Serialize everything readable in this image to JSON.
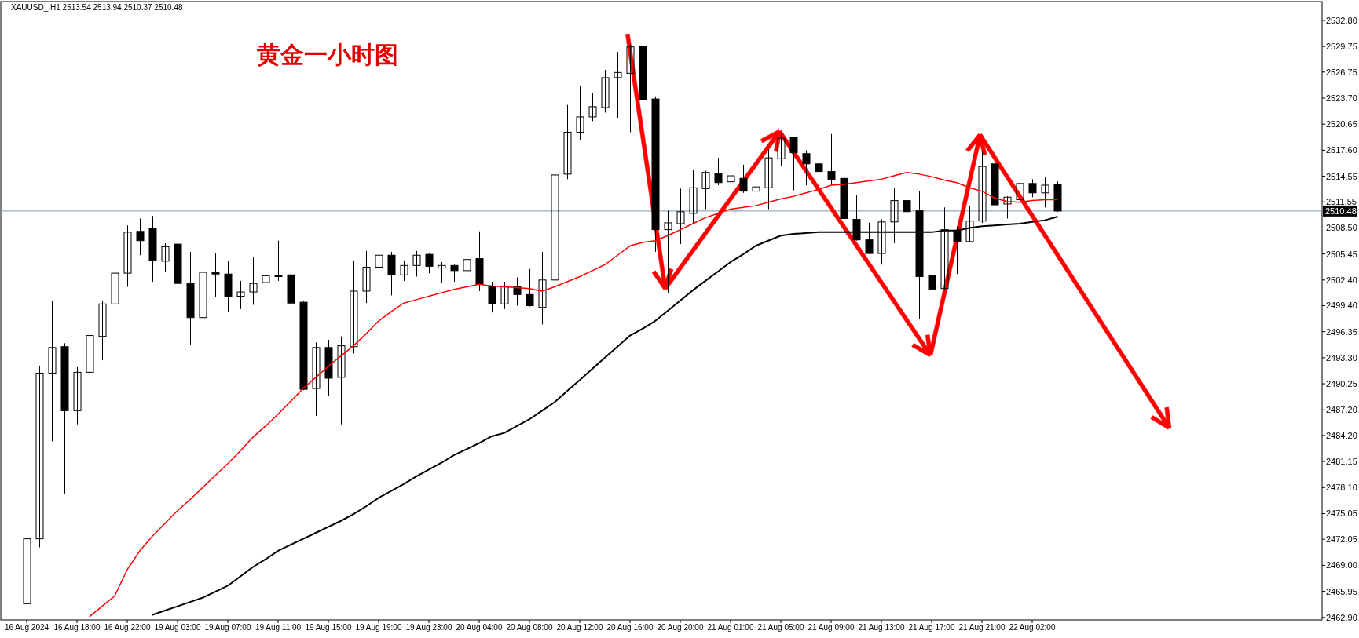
{
  "chart_data": {
    "type": "candlestick",
    "title": "黄金一小时图",
    "subtitle": "XAUUSD_,H1 2513.54 2513.94 2510.37 2510.48",
    "categories": [
      "16 Aug 2024",
      null,
      null,
      null,
      "16 Aug 18:00",
      null,
      null,
      null,
      "16 Aug 22:00",
      null,
      null,
      null,
      "19 Aug 03:00",
      null,
      null,
      null,
      "19 Aug 07:00",
      null,
      null,
      null,
      "19 Aug 11:00",
      null,
      null,
      null,
      "19 Aug 15:00",
      null,
      null,
      null,
      "19 Aug 19:00",
      null,
      null,
      null,
      "19 Aug 23:00",
      null,
      null,
      null,
      "20 Aug 04:00",
      null,
      null,
      null,
      "20 Aug 08:00",
      null,
      null,
      null,
      "20 Aug 12:00",
      null,
      null,
      null,
      "20 Aug 16:00",
      null,
      null,
      null,
      "20 Aug 20:00",
      null,
      null,
      null,
      "21 Aug 01:00",
      null,
      null,
      null,
      "21 Aug 05:00",
      null,
      null,
      null,
      "21 Aug 09:00",
      null,
      null,
      null,
      "21 Aug 13:00",
      null,
      null,
      null,
      "21 Aug 17:00",
      null,
      null,
      null,
      "21 Aug 21:00",
      null,
      null,
      null,
      "22 Aug 02:00",
      null,
      null
    ],
    "ohlc": [
      [
        2464.5,
        2472.2,
        2464.4,
        2472.1
      ],
      [
        2472.1,
        2492.3,
        2471.1,
        2491.5
      ],
      [
        2491.5,
        2500.0,
        2483.5,
        2494.5
      ],
      [
        2494.6,
        2495.0,
        2477.4,
        2487.1
      ],
      [
        2487.1,
        2492.2,
        2485.5,
        2491.6
      ],
      [
        2491.6,
        2497.7,
        2491.5,
        2495.9
      ],
      [
        2495.8,
        2500.0,
        2493.0,
        2499.6
      ],
      [
        2499.6,
        2504.7,
        2498.3,
        2503.2
      ],
      [
        2503.2,
        2508.8,
        2501.6,
        2508.0
      ],
      [
        2508.1,
        2509.6,
        2505.3,
        2507.0
      ],
      [
        2508.4,
        2509.9,
        2502.2,
        2504.7
      ],
      [
        2504.6,
        2506.7,
        2503.3,
        2506.3
      ],
      [
        2506.6,
        2506.7,
        2500.1,
        2502.0
      ],
      [
        2502.0,
        2505.7,
        2494.8,
        2498.0
      ],
      [
        2498.0,
        2503.8,
        2496.1,
        2503.3
      ],
      [
        2503.3,
        2505.5,
        2500.4,
        2503.1
      ],
      [
        2503.1,
        2504.6,
        2498.7,
        2500.5
      ],
      [
        2500.5,
        2502.3,
        2499.0,
        2501.0
      ],
      [
        2501.0,
        2505.1,
        2499.5,
        2502.0
      ],
      [
        2502.1,
        2504.7,
        2499.6,
        2502.9
      ],
      [
        2502.9,
        2507.0,
        2502.3,
        2502.8
      ],
      [
        2503.0,
        2503.8,
        2499.6,
        2499.7
      ],
      [
        2499.8,
        2500.0,
        2489.5,
        2489.6
      ],
      [
        2489.7,
        2495.1,
        2486.5,
        2494.5
      ],
      [
        2494.5,
        2495.4,
        2488.8,
        2490.9
      ],
      [
        2491.0,
        2495.8,
        2485.5,
        2494.7
      ],
      [
        2494.6,
        2504.7,
        2493.8,
        2501.1
      ],
      [
        2501.1,
        2505.8,
        2499.7,
        2503.9
      ],
      [
        2503.9,
        2507.2,
        2501.9,
        2505.3
      ],
      [
        2505.3,
        2505.7,
        2500.6,
        2503.0
      ],
      [
        2503.0,
        2504.7,
        2502.3,
        2504.1
      ],
      [
        2504.1,
        2505.8,
        2502.8,
        2505.3
      ],
      [
        2505.4,
        2505.5,
        2503.2,
        2504.0
      ],
      [
        2503.8,
        2504.5,
        2502.0,
        2504.1
      ],
      [
        2504.1,
        2504.2,
        2502.2,
        2503.5
      ],
      [
        2503.5,
        2506.7,
        2503.2,
        2504.8
      ],
      [
        2504.9,
        2508.1,
        2501.1,
        2501.9
      ],
      [
        2501.6,
        2502.2,
        2498.6,
        2499.6
      ],
      [
        2499.6,
        2502.2,
        2499.0,
        2501.6
      ],
      [
        2501.6,
        2502.7,
        2499.4,
        2500.7
      ],
      [
        2500.7,
        2503.7,
        2499.3,
        2499.4
      ],
      [
        2499.2,
        2505.7,
        2497.2,
        2502.4
      ],
      [
        2502.4,
        2514.9,
        2501.1,
        2514.7
      ],
      [
        2514.8,
        2522.9,
        2514.2,
        2519.7
      ],
      [
        2519.7,
        2525.1,
        2518.8,
        2521.5
      ],
      [
        2521.5,
        2524.3,
        2521.0,
        2522.7
      ],
      [
        2522.6,
        2527.0,
        2522.0,
        2526.1
      ],
      [
        2526.1,
        2529.1,
        2521.4,
        2526.7
      ],
      [
        2526.6,
        2530.0,
        2519.7,
        2529.7
      ],
      [
        2529.8,
        2530.1,
        2523.5,
        2523.5
      ],
      [
        2523.6,
        2523.9,
        2505.7,
        2508.3
      ],
      [
        2508.3,
        2510.5,
        2500.9,
        2509.1
      ],
      [
        2509.0,
        2513.1,
        2506.6,
        2510.4
      ],
      [
        2510.2,
        2515.3,
        2509.1,
        2513.2
      ],
      [
        2513.1,
        2515.2,
        2510.7,
        2515.0
      ],
      [
        2514.9,
        2516.7,
        2513.5,
        2513.8
      ],
      [
        2513.9,
        2515.7,
        2513.1,
        2514.6
      ],
      [
        2514.3,
        2515.9,
        2512.6,
        2512.8
      ],
      [
        2512.8,
        2515.0,
        2512.4,
        2513.3
      ],
      [
        2513.2,
        2517.7,
        2510.7,
        2516.7
      ],
      [
        2516.6,
        2519.7,
        2515.8,
        2519.0
      ],
      [
        2519.1,
        2519.2,
        2512.9,
        2517.3
      ],
      [
        2517.2,
        2517.6,
        2513.5,
        2516.0
      ],
      [
        2516.0,
        2518.3,
        2514.8,
        2515.1
      ],
      [
        2515.1,
        2519.5,
        2513.5,
        2514.2
      ],
      [
        2514.3,
        2516.9,
        2507.8,
        2509.6
      ],
      [
        2509.5,
        2512.3,
        2507.0,
        2507.1
      ],
      [
        2507.1,
        2509.1,
        2505.5,
        2505.5
      ],
      [
        2505.5,
        2509.5,
        2504.2,
        2509.2
      ],
      [
        2509.2,
        2513.2,
        2506.7,
        2511.7
      ],
      [
        2511.7,
        2513.5,
        2507.0,
        2510.4
      ],
      [
        2510.5,
        2512.8,
        2497.8,
        2502.8
      ],
      [
        2502.9,
        2506.6,
        2494.3,
        2501.3
      ],
      [
        2501.4,
        2510.9,
        2501.3,
        2508.3
      ],
      [
        2508.2,
        2508.7,
        2503.1,
        2506.9
      ],
      [
        2506.9,
        2511.1,
        2506.8,
        2509.3
      ],
      [
        2509.3,
        2517.5,
        2509.1,
        2515.7
      ],
      [
        2516.0,
        2516.1,
        2510.8,
        2511.2
      ],
      [
        2511.3,
        2512.2,
        2509.6,
        2512.1
      ],
      [
        2511.8,
        2513.8,
        2511.3,
        2513.7
      ],
      [
        2513.7,
        2514.2,
        2512.1,
        2512.6
      ],
      [
        2512.6,
        2514.5,
        2510.9,
        2513.5
      ],
      [
        2513.54,
        2513.94,
        2510.37,
        2510.48
      ]
    ],
    "series": [
      {
        "type": "line",
        "color": "#ff0000",
        "values": [
          null,
          null,
          null,
          null,
          null,
          2463.0,
          2464.2,
          2465.4,
          2468.5,
          2470.7,
          2472.4,
          2473.9,
          2475.4,
          2476.7,
          2478.1,
          2479.5,
          2480.9,
          2482.4,
          2484.0,
          2485.3,
          2486.7,
          2488.2,
          2489.7,
          2491.0,
          2492.3,
          2493.5,
          2494.7,
          2496.1,
          2497.6,
          2498.7,
          2499.7,
          2500.1,
          2500.5,
          2500.9,
          2501.3,
          2501.6,
          2501.9,
          2501.7,
          2501.6,
          2501.5,
          2501.4,
          2501.1,
          2501.6,
          2502.2,
          2502.8,
          2503.5,
          2504.2,
          2505.3,
          2506.4,
          2506.8,
          2507.0,
          2507.6,
          2508.3,
          2509.0,
          2509.7,
          2510.2,
          2510.7,
          2510.9,
          2511.1,
          2511.5,
          2511.9,
          2512.2,
          2512.6,
          2513.0,
          2513.5,
          2513.6,
          2513.8,
          2514.0,
          2514.2,
          2514.6,
          2515.0,
          2514.8,
          2514.5,
          2514.1,
          2513.8,
          2513.2,
          2512.8,
          2512.0,
          2511.6,
          2511.5,
          2511.7,
          2511.8,
          2511.8
        ]
      },
      {
        "type": "line",
        "color": "#000000",
        "values": [
          null,
          null,
          null,
          null,
          null,
          null,
          null,
          null,
          null,
          null,
          2463.2,
          2463.7,
          2464.2,
          2464.7,
          2465.2,
          2465.9,
          2466.6,
          2467.7,
          2468.8,
          2469.7,
          2470.7,
          2471.4,
          2472.1,
          2472.8,
          2473.5,
          2474.2,
          2475.0,
          2475.9,
          2476.9,
          2477.7,
          2478.5,
          2479.4,
          2480.2,
          2481.0,
          2481.9,
          2482.6,
          2483.3,
          2484.1,
          2484.5,
          2485.3,
          2486.1,
          2487.1,
          2488.1,
          2489.4,
          2490.7,
          2492.0,
          2493.3,
          2494.6,
          2495.9,
          2496.7,
          2497.6,
          2498.8,
          2500.0,
          2501.2,
          2502.3,
          2503.4,
          2504.5,
          2505.4,
          2506.4,
          2507.0,
          2507.6,
          2507.8,
          2507.9,
          2508.0,
          2508.0,
          2508.0,
          2508.0,
          2508.0,
          2508.0,
          2508.0,
          2508.0,
          2508.0,
          2508.0,
          2508.2,
          2508.2,
          2508.5,
          2508.7,
          2508.8,
          2508.9,
          2509.0,
          2509.2,
          2509.4,
          2509.8
        ]
      }
    ],
    "ylim": [
      2462.6,
      2535.0
    ],
    "yticks": [
      {
        "value": 2532.8,
        "label": "2532.80"
      },
      {
        "value": 2529.75,
        "label": "2529.75"
      },
      {
        "value": 2526.75,
        "label": "2526.75"
      },
      {
        "value": 2523.7,
        "label": "2523.70"
      },
      {
        "value": 2520.65,
        "label": "2520.65"
      },
      {
        "value": 2517.6,
        "label": "2517.60"
      },
      {
        "value": 2514.55,
        "label": "2514.55"
      },
      {
        "value": 2511.55,
        "label": "2511.55"
      },
      {
        "value": 2508.5,
        "label": "2508.50"
      },
      {
        "value": 2505.45,
        "label": "2505.45"
      },
      {
        "value": 2502.4,
        "label": "2502.40"
      },
      {
        "value": 2499.4,
        "label": "2499.40"
      },
      {
        "value": 2496.35,
        "label": "2496.35"
      },
      {
        "value": 2493.3,
        "label": "2493.30"
      },
      {
        "value": 2490.25,
        "label": "2490.25"
      },
      {
        "value": 2487.2,
        "label": "2487.20"
      },
      {
        "value": 2484.2,
        "label": "2484.20"
      },
      {
        "value": 2481.15,
        "label": "2481.15"
      },
      {
        "value": 2478.1,
        "label": "2478.10"
      },
      {
        "value": 2475.05,
        "label": "2475.05"
      },
      {
        "value": 2472.05,
        "label": "2472.05"
      },
      {
        "value": 2469,
        "label": "2469.00"
      },
      {
        "value": 2465.95,
        "label": "2465.95"
      },
      {
        "value": 2462.9,
        "label": "2462.90"
      }
    ],
    "ref_lines": [
      {
        "axis": "y",
        "value": 2510.48,
        "label": "2510.48",
        "color": "#8096b0"
      }
    ]
  }
}
